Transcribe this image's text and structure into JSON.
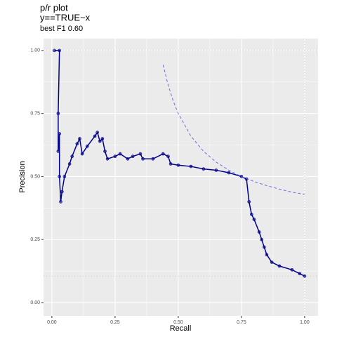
{
  "chart_data": {
    "type": "line",
    "title": "p/r plot",
    "subtitle": "y==TRUE~x",
    "caption": "best F1 0.60",
    "x_label": "Recall",
    "y_label": "Precision",
    "xlim": [
      -0.033,
      1.053
    ],
    "ylim": [
      -0.053,
      1.047
    ],
    "xticks": [
      {
        "value": 0,
        "label": "0.00"
      },
      {
        "value": 0.25,
        "label": "0.25"
      },
      {
        "value": 0.5,
        "label": "0.50"
      },
      {
        "value": 0.75,
        "label": "0.75"
      },
      {
        "value": 1,
        "label": "1.00"
      }
    ],
    "yticks": [
      {
        "value": 0,
        "label": "0.00"
      },
      {
        "value": 0.25,
        "label": "0.25"
      },
      {
        "value": 0.5,
        "label": "0.50"
      },
      {
        "value": 0.75,
        "label": "0.75"
      },
      {
        "value": 1,
        "label": "1.00"
      }
    ],
    "minor_xticks": [
      0.125,
      0.375,
      0.625,
      0.875
    ],
    "minor_yticks": [
      0.125,
      0.375,
      0.625,
      0.875
    ],
    "grid": true,
    "hlines": [
      0.105,
      1
    ],
    "vlines": [
      1
    ],
    "series": [
      {
        "color": "#00008b",
        "style": "solid",
        "points": true,
        "x": [
          0.01,
          0.03,
          0.025,
          0.025,
          0.03,
          0.03,
          0.035,
          0.04,
          0.05,
          0.07,
          0.08,
          0.1,
          0.11,
          0.12,
          0.14,
          0.17,
          0.18,
          0.19,
          0.2,
          0.21,
          0.22,
          0.25,
          0.27,
          0.3,
          0.32,
          0.35,
          0.36,
          0.4,
          0.44,
          0.46,
          0.47,
          0.5,
          0.55,
          0.6,
          0.65,
          0.7,
          0.75,
          0.77,
          0.78,
          0.79,
          0.8,
          0.82,
          0.83,
          0.84,
          0.85,
          0.87,
          0.9,
          0.95,
          0.98,
          1.0
        ],
        "values": [
          1.0,
          1.0,
          0.75,
          0.6,
          0.67,
          0.5,
          0.4,
          0.44,
          0.5,
          0.55,
          0.58,
          0.63,
          0.65,
          0.59,
          0.62,
          0.66,
          0.675,
          0.64,
          0.65,
          0.6,
          0.57,
          0.58,
          0.59,
          0.57,
          0.58,
          0.59,
          0.57,
          0.57,
          0.59,
          0.58,
          0.55,
          0.545,
          0.54,
          0.53,
          0.525,
          0.515,
          0.5,
          0.49,
          0.4,
          0.35,
          0.33,
          0.28,
          0.25,
          0.22,
          0.19,
          0.16,
          0.145,
          0.13,
          0.115,
          0.105
        ]
      },
      {
        "color": "#6b6bf0",
        "style": "dashed",
        "points": false,
        "x": [
          0.44,
          0.46,
          0.48,
          0.5,
          0.55,
          0.6,
          0.65,
          0.7,
          0.75,
          0.8,
          0.85,
          0.9,
          0.95,
          1.0
        ],
        "values": [
          0.943,
          0.8625,
          0.8,
          0.75,
          0.66,
          0.6,
          0.557,
          0.525,
          0.5,
          0.48,
          0.464,
          0.45,
          0.438,
          0.429
        ]
      }
    ]
  }
}
